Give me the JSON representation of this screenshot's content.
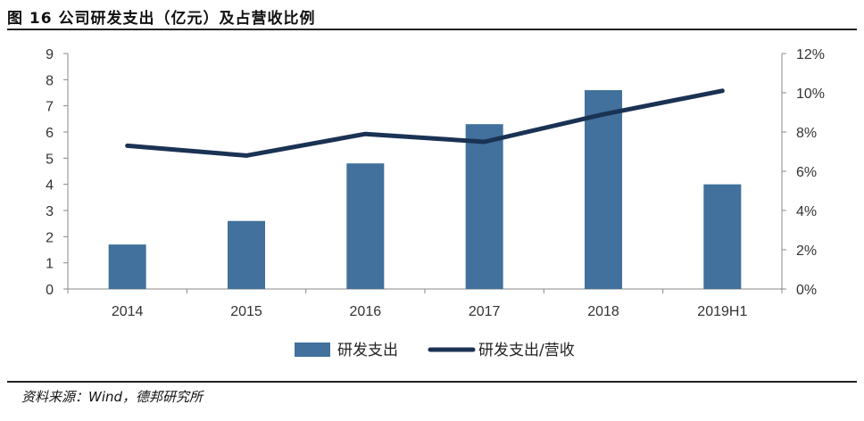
{
  "header": {
    "title": "图 16 公司研发支出（亿元）及占营收比例"
  },
  "footer": {
    "source": "资料来源：Wind，德邦研究所"
  },
  "chart_data": {
    "type": "bar",
    "categories": [
      "2014",
      "2015",
      "2016",
      "2017",
      "2018",
      "2019H1"
    ],
    "series": [
      {
        "name": "研发支出",
        "type": "bar",
        "axis": "left",
        "color": "#41719c",
        "values": [
          1.7,
          2.6,
          4.8,
          6.3,
          7.6,
          4.0
        ]
      },
      {
        "name": "研发支出/营收",
        "type": "line",
        "axis": "right",
        "color": "#1a3253",
        "values": [
          7.3,
          6.8,
          7.9,
          7.5,
          8.9,
          10.1
        ]
      }
    ],
    "y_left": {
      "min": 0,
      "max": 9,
      "ticks": [
        "0",
        "1",
        "2",
        "3",
        "4",
        "5",
        "6",
        "7",
        "8",
        "9"
      ]
    },
    "y_right": {
      "min": 0,
      "max": 12,
      "ticks": [
        "0%",
        "2%",
        "4%",
        "6%",
        "8%",
        "10%",
        "12%"
      ]
    },
    "grid": false,
    "legend_position": "bottom"
  }
}
